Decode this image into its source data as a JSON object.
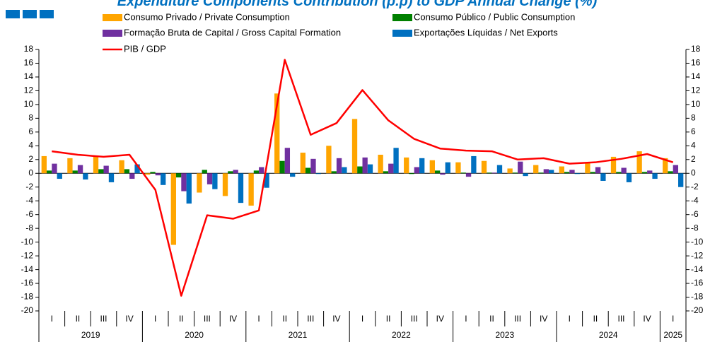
{
  "chart_data": {
    "type": "bar_line",
    "title": "Expenditure Components Contribution (p.p) to GDP Annual Change (%)",
    "categories": [
      "I",
      "II",
      "III",
      "IV",
      "I",
      "II",
      "III",
      "IV",
      "I",
      "II",
      "III",
      "IV",
      "I",
      "II",
      "III",
      "IV",
      "I",
      "II",
      "III",
      "IV",
      "I",
      "II",
      "III",
      "IV",
      "I"
    ],
    "x_groups": [
      "2019",
      "2020",
      "2021",
      "2022",
      "2023",
      "2024",
      "2025"
    ],
    "series": [
      {
        "name": "Consumo Privado / Private Consumption",
        "color": "#ffa500",
        "kind": "bar",
        "values": [
          2.5,
          2.2,
          2.4,
          1.9,
          -0.2,
          -10.4,
          -2.8,
          -3.3,
          -4.7,
          11.6,
          3.0,
          4.0,
          7.9,
          2.7,
          2.3,
          1.9,
          1.6,
          1.8,
          0.7,
          1.2,
          1.0,
          1.6,
          2.4,
          3.2,
          2.2
        ]
      },
      {
        "name": "Consumo Público / Public Consumption",
        "color": "#008000",
        "kind": "bar",
        "values": [
          0.4,
          0.4,
          0.6,
          0.6,
          0.2,
          -0.6,
          0.5,
          0.3,
          0.4,
          1.8,
          0.8,
          0.3,
          1.0,
          0.3,
          -0.1,
          0.4,
          0.1,
          0.1,
          0.1,
          0.1,
          0.2,
          0.2,
          0.2,
          0.2,
          0.3
        ]
      },
      {
        "name": "Formação Bruta de Capital / Gross Capital Formation",
        "color": "#7030a0",
        "kind": "bar",
        "values": [
          1.4,
          1.2,
          1.1,
          -0.8,
          -0.3,
          -2.6,
          -1.6,
          0.5,
          0.9,
          3.7,
          2.1,
          2.2,
          2.3,
          1.4,
          0.9,
          -0.2,
          -0.5,
          0.1,
          1.7,
          0.6,
          0.5,
          0.9,
          0.8,
          0.4,
          1.2
        ]
      },
      {
        "name": "Exportações Líquidas / Net Exports",
        "color": "#0070c0",
        "kind": "bar",
        "values": [
          -0.8,
          -0.9,
          -1.3,
          1.3,
          -1.7,
          -4.4,
          -2.3,
          -4.3,
          -2.1,
          -0.5,
          -0.1,
          0.9,
          1.3,
          3.7,
          2.2,
          1.6,
          2.5,
          1.2,
          -0.4,
          0.5,
          -0.1,
          -1.1,
          -1.3,
          -0.8,
          -2.0
        ]
      },
      {
        "name": "PIB / GDP",
        "color": "#ff0000",
        "kind": "line",
        "values": [
          3.2,
          2.7,
          2.4,
          2.7,
          -2.4,
          -17.8,
          -6.1,
          -6.6,
          -5.4,
          16.5,
          5.6,
          7.3,
          12.1,
          7.7,
          5.0,
          3.6,
          3.3,
          3.2,
          2.0,
          2.2,
          1.4,
          1.6,
          2.1,
          2.8,
          1.6
        ]
      }
    ],
    "ylim": [
      -20,
      18
    ],
    "yticks": [
      -20,
      -18,
      -16,
      -14,
      -12,
      -10,
      -8,
      -6,
      -4,
      -2,
      0,
      2,
      4,
      6,
      8,
      10,
      12,
      14,
      16,
      18
    ]
  }
}
